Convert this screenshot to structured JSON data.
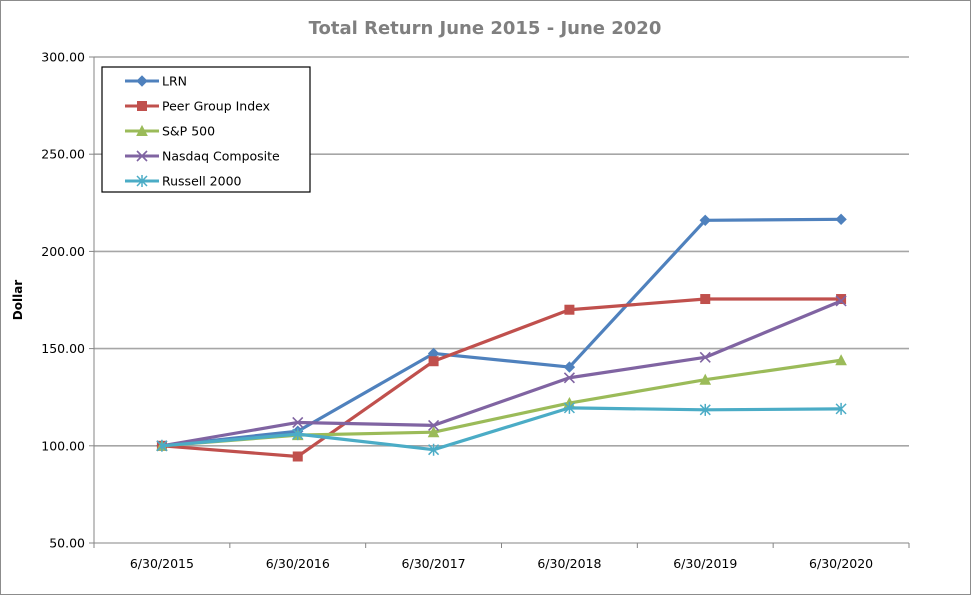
{
  "chart_data": {
    "type": "line",
    "title": "Total Return June 2015 - June 2020",
    "xlabel": "",
    "ylabel": "Dollar",
    "ylim": [
      50,
      300
    ],
    "yticks": [
      50,
      100,
      150,
      200,
      250,
      300
    ],
    "ytick_labels": [
      "50.00",
      "100.00",
      "150.00",
      "200.00",
      "250.00",
      "300.00"
    ],
    "categories": [
      "6/30/2015",
      "6/30/2016",
      "6/30/2017",
      "6/30/2018",
      "6/30/2019",
      "6/30/2020"
    ],
    "grid": true,
    "legend_position": "top-left",
    "series": [
      {
        "name": "LRN",
        "color": "#4f81bd",
        "marker": "diamond",
        "values": [
          100,
          107.5,
          147.5,
          140.5,
          216,
          216.5
        ]
      },
      {
        "name": "Peer Group Index",
        "color": "#c0504d",
        "marker": "square",
        "values": [
          100,
          94.5,
          143.5,
          170,
          175.5,
          175.5
        ]
      },
      {
        "name": "S&P 500",
        "color": "#9bbb59",
        "marker": "triangle",
        "values": [
          100,
          105.5,
          107,
          122,
          134,
          144
        ]
      },
      {
        "name": "Nasdaq Composite",
        "color": "#8064a2",
        "marker": "x",
        "values": [
          100,
          112,
          110.5,
          135,
          145.5,
          174.5
        ]
      },
      {
        "name": "Russell 2000",
        "color": "#4bacc6",
        "marker": "star",
        "values": [
          100,
          106,
          98,
          119.5,
          118.5,
          119
        ]
      }
    ]
  }
}
